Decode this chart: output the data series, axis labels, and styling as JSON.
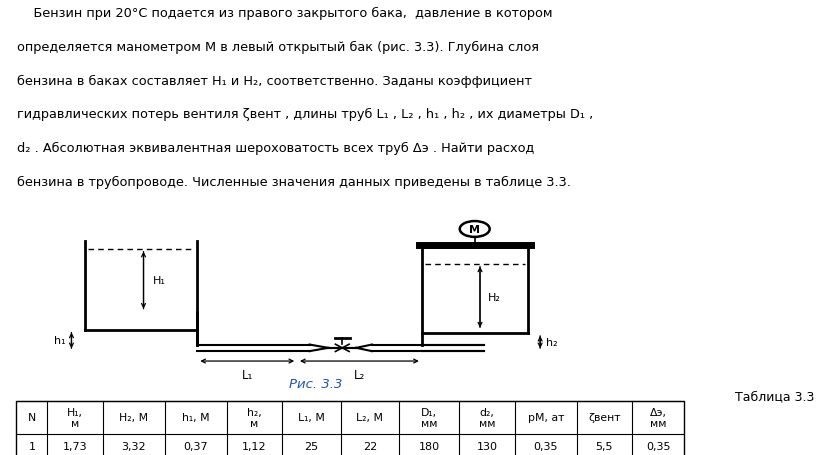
{
  "bg_color": "#ffffff",
  "line_color": "#000000",
  "text_color": "#000000",
  "fig_label_color": "#2255aa",
  "table_caption": "Таблица 3.3",
  "fig_caption": "Рис. 3.3",
  "col_labels": [
    "N",
    "H₁,\nм",
    "H₂, М",
    "h₁, М",
    "h₂,\nм",
    "L₁, М",
    "L₂, М",
    "D₁,\nмм",
    "d₂,\nмм",
    "рМ, ат",
    "ζвент",
    "Δэ,\nмм"
  ],
  "row_data": [
    "1",
    "1,73",
    "3,32",
    "0,37",
    "1,12",
    "25",
    "22",
    "180",
    "130",
    "0,35",
    "5,5",
    "0,35"
  ]
}
